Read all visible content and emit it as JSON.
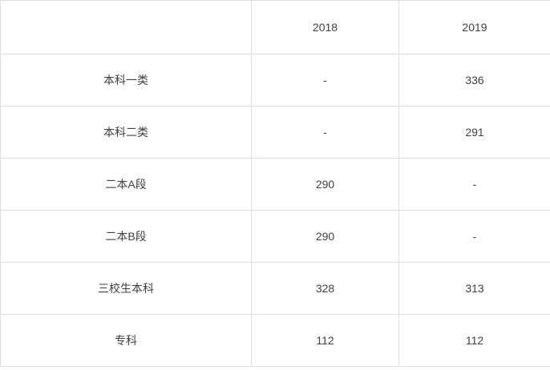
{
  "chart_data": {
    "type": "table",
    "title": "",
    "columns": [
      "",
      "2018",
      "2019"
    ],
    "rows": [
      [
        "本科一类",
        "-",
        "336"
      ],
      [
        "本科二类",
        "-",
        "291"
      ],
      [
        "二本A段",
        "290",
        "-"
      ],
      [
        "二本B段",
        "290",
        "-"
      ],
      [
        "三校生本科",
        "328",
        "313"
      ],
      [
        "专科",
        "112",
        "112"
      ]
    ]
  },
  "colors": {
    "border": "#dcdcdc",
    "text": "#404040",
    "background": "#ffffff"
  }
}
